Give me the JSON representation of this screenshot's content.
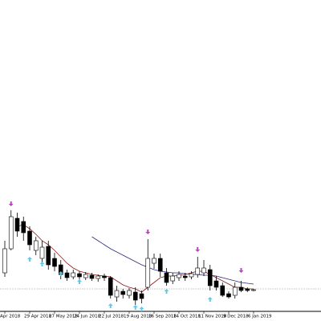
{
  "chart_data": {
    "type": "candlestick",
    "categories": [
      "Apr 2018",
      null,
      null,
      null,
      "29 Apr 2018",
      null,
      null,
      null,
      "27 May 2018",
      null,
      null,
      null,
      "24 Jun 2018",
      null,
      null,
      null,
      "22 Jul 2018",
      null,
      null,
      null,
      "19 Aug 2018",
      null,
      null,
      null,
      "16 Sep 2018",
      null,
      null,
      null,
      "14 Oct 2018",
      null,
      null,
      null,
      "11 Nov 2018",
      null,
      null,
      null,
      "9 Dec 2018",
      null,
      null,
      null,
      "6 Jan 2019"
    ],
    "open": [
      60,
      90,
      128,
      124,
      112,
      88,
      78,
      93,
      78,
      70,
      60,
      55,
      59,
      54,
      57,
      53,
      56,
      54,
      30,
      37,
      32,
      36,
      34,
      42,
      72,
      78,
      60,
      50,
      54,
      56,
      55,
      58,
      60,
      64,
      50,
      44,
      34,
      32,
      42,
      40,
      38
    ],
    "high": [
      100,
      138,
      135,
      130,
      118,
      105,
      100,
      100,
      85,
      76,
      64,
      64,
      62,
      61,
      60,
      58,
      59,
      56,
      44,
      40,
      41,
      42,
      38,
      102,
      84,
      84,
      66,
      60,
      62,
      60,
      62,
      80,
      76,
      70,
      56,
      48,
      37,
      48,
      50,
      42,
      40
    ],
    "low": [
      55,
      88,
      105,
      100,
      88,
      82,
      72,
      64,
      62,
      52,
      50,
      52,
      50,
      51,
      50,
      49,
      50,
      28,
      24,
      28,
      28,
      20,
      22,
      38,
      65,
      55,
      44,
      46,
      50,
      50,
      52,
      54,
      56,
      38,
      38,
      30,
      28,
      28,
      36,
      36,
      37
    ],
    "close": [
      90,
      130,
      112,
      110,
      95,
      100,
      92,
      70,
      68,
      58,
      54,
      60,
      55,
      58,
      53,
      56,
      54,
      32,
      38,
      33,
      38,
      26,
      28,
      78,
      78,
      62,
      48,
      56,
      58,
      54,
      59,
      66,
      66,
      44,
      42,
      32,
      30,
      42,
      38,
      38,
      39
    ],
    "series": [
      {
        "color": "#8b1a1a",
        "values": [
          null,
          null,
          118,
          120,
          115,
          108,
          100,
          95,
          88,
          80,
          72,
          66,
          62,
          60,
          58,
          57,
          56,
          55,
          50,
          45,
          42,
          40,
          36,
          42,
          48,
          54,
          56,
          56,
          57,
          58,
          60,
          62,
          62,
          58,
          54,
          50,
          46,
          42,
          42,
          40,
          40
        ]
      },
      {
        "color": "#2a2a7a",
        "values": [
          null,
          null,
          null,
          null,
          null,
          null,
          null,
          null,
          null,
          null,
          null,
          null,
          null,
          null,
          105,
          100,
          95,
          90,
          86,
          82,
          78,
          74,
          70,
          67,
          64,
          62,
          61,
          60,
          60,
          59,
          58,
          58,
          57,
          57,
          56,
          54,
          52,
          50,
          48,
          47,
          46
        ]
      }
    ],
    "down_arrows": {
      "color": "#c040c8",
      "x": [
        1,
        23,
        31,
        38
      ],
      "y": [
        143,
        108,
        86,
        60
      ]
    },
    "up_arrows": {
      "color": "#60c8e8",
      "x": [
        4,
        6,
        9,
        12,
        17,
        21,
        22,
        26,
        33
      ],
      "y": [
        80,
        74,
        62,
        52,
        22,
        20,
        18,
        40,
        30
      ]
    },
    "price_line": 40,
    "ylim": [
      12,
      400
    ],
    "bull_color": "#ffffff",
    "bear_color": "#000000"
  }
}
